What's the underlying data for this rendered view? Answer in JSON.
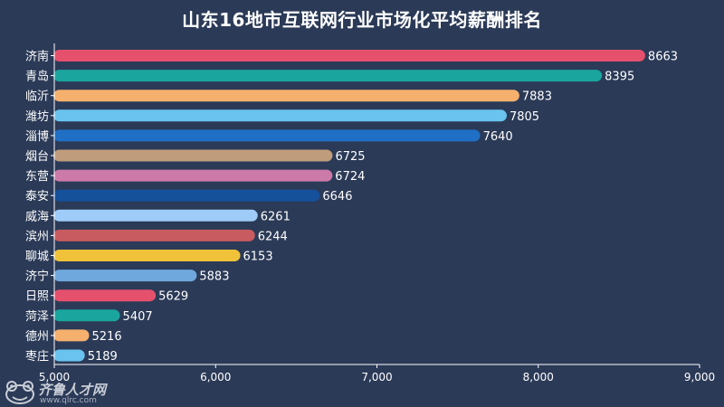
{
  "title": "山东16地市互联网行业市场化平均薪酬排名",
  "logo": {
    "name": "齐鲁人才网",
    "url": "www.qlrc.com"
  },
  "chart_data": {
    "type": "bar",
    "orientation": "horizontal",
    "title": "山东16地市互联网行业市场化平均薪酬排名",
    "xlabel": "",
    "ylabel": "",
    "xlim": [
      5000,
      9000
    ],
    "x_ticks": [
      "5,000",
      "6,000",
      "7,000",
      "8,000",
      "9,000"
    ],
    "grid": false,
    "legend": "none",
    "categories": [
      "济南",
      "青岛",
      "临沂",
      "潍坊",
      "淄博",
      "烟台",
      "东营",
      "泰安",
      "威海",
      "滨州",
      "聊城",
      "济宁",
      "日照",
      "菏泽",
      "德州",
      "枣庄"
    ],
    "values": [
      8663,
      8395,
      7883,
      7805,
      7640,
      6725,
      6724,
      6646,
      6261,
      6244,
      6153,
      5883,
      5629,
      5407,
      5216,
      5189
    ],
    "colors": [
      "#e5506c",
      "#1aa59e",
      "#f5b06e",
      "#69c3ee",
      "#1f6fc5",
      "#bf9c7b",
      "#cc7aa8",
      "#15519b",
      "#9ecbf7",
      "#c85b60",
      "#efc23a",
      "#6fa8dc",
      "#e5506c",
      "#1aa59e",
      "#f5b06e",
      "#69c3ee"
    ]
  }
}
